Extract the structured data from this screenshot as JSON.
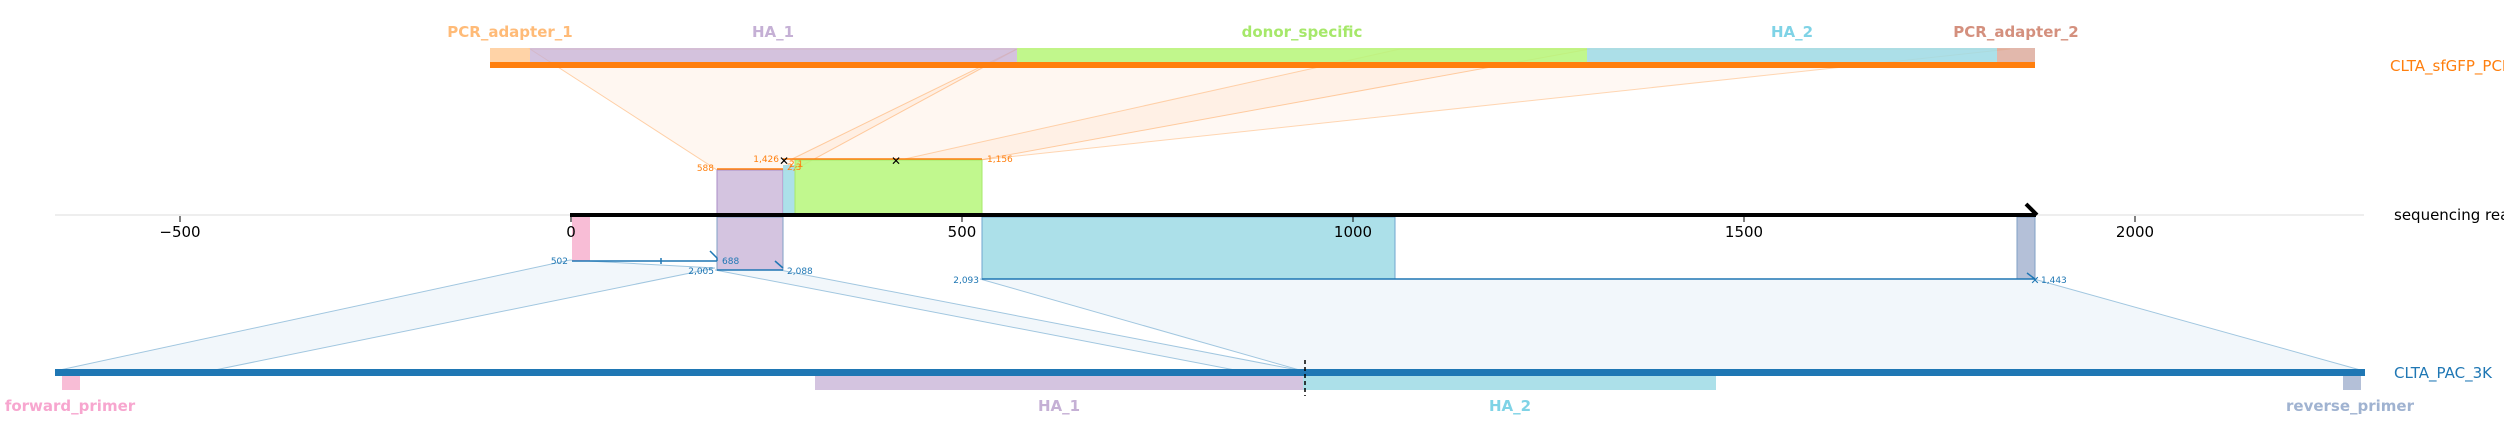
{
  "top_track": {
    "name": "CLTA_sfGFP_PCR",
    "color": "#ff7f0e",
    "features": [
      {
        "label": "PCR_adapter_1",
        "color": "#ffbb78",
        "text_color": "#ffbb78"
      },
      {
        "label": "HA_1",
        "color": "#c5b0d5",
        "text_color": "#c5b0d5"
      },
      {
        "label": "donor_specific",
        "color": "#b6f77a",
        "text_color": "#a6e86a"
      },
      {
        "label": "HA_2",
        "color": "#9edae5",
        "text_color": "#7fd3e6"
      },
      {
        "label": "PCR_adapter_2",
        "color": "#d8a090",
        "text_color": "#d4907e"
      }
    ]
  },
  "read_track": {
    "name": "sequencing read",
    "axis_ticks": [
      "−500",
      "0",
      "500",
      "1000",
      "1500",
      "2000"
    ],
    "upper_coords": [
      "588",
      "1,426",
      "1,156",
      "2,3",
      "2,1"
    ],
    "lower_coords": [
      "502",
      "688",
      "2,005",
      "2,088",
      "2,093",
      "1,443"
    ]
  },
  "bottom_track": {
    "name": "CLTA_PAC_3K",
    "color": "#1f77b4",
    "features": [
      {
        "label": "forward_primer",
        "color": "#f7b6d2",
        "text_color": "#f7a6cf"
      },
      {
        "label": "HA_1",
        "color": "#c5b0d5",
        "text_color": "#c5b0d5"
      },
      {
        "label": "HA_2",
        "color": "#9edae5",
        "text_color": "#7fd3e6"
      },
      {
        "label": "reverse_primer",
        "color": "#b0bdd6",
        "text_color": "#a0b3d1"
      }
    ]
  }
}
